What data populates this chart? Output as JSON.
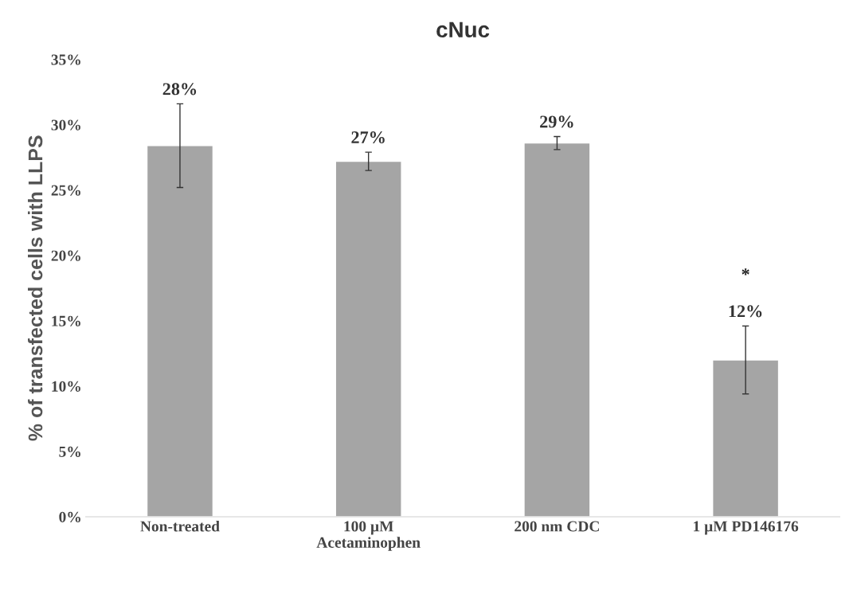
{
  "chart_data": {
    "type": "bar",
    "title": "cNuc",
    "ylabel": "% of transfected cells with LLPS",
    "categories": [
      "Non-treated",
      "100 µM\nAcetaminophen",
      "200 nm CDC",
      "1 µM PD146176"
    ],
    "values": [
      28.4,
      27.2,
      28.6,
      12.0
    ],
    "errors": [
      3.2,
      0.7,
      0.5,
      2.6
    ],
    "value_labels": [
      "28%",
      "27%",
      "29%",
      "12%"
    ],
    "color": "#a5a5a5",
    "ylim": [
      0,
      35
    ],
    "yticks": [
      {
        "value": 0,
        "label": "0%"
      },
      {
        "value": 5,
        "label": "5%"
      },
      {
        "value": 10,
        "label": "10%"
      },
      {
        "value": 15,
        "label": "15%"
      },
      {
        "value": 20,
        "label": "20%"
      },
      {
        "value": 25,
        "label": "25%"
      },
      {
        "value": 30,
        "label": "30%"
      },
      {
        "value": 35,
        "label": "35%"
      }
    ],
    "annotations": [
      "*"
    ],
    "grid": false
  }
}
